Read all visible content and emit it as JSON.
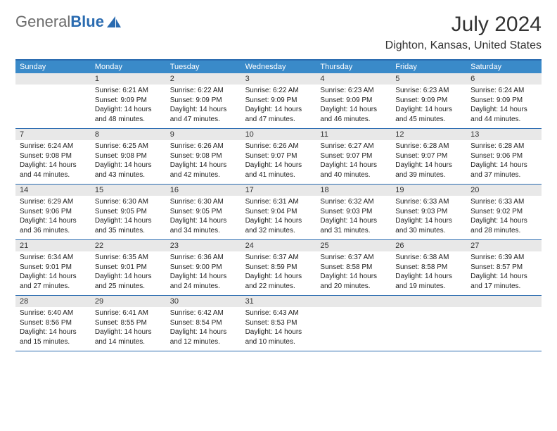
{
  "logo": {
    "text_general": "General",
    "text_blue": "Blue",
    "blue_color": "#2a6bb0",
    "gray_color": "#6b6b6b"
  },
  "title": "July 2024",
  "location": "Dighton, Kansas, United States",
  "header_bg": "#3a8ac9",
  "border_color": "#2a6bb0",
  "daynum_bg": "#e8e8e8",
  "dow": [
    "Sunday",
    "Monday",
    "Tuesday",
    "Wednesday",
    "Thursday",
    "Friday",
    "Saturday"
  ],
  "weeks": [
    [
      {
        "empty": true
      },
      {
        "day": "1",
        "sunrise": "Sunrise: 6:21 AM",
        "sunset": "Sunset: 9:09 PM",
        "daylight1": "Daylight: 14 hours",
        "daylight2": "and 48 minutes."
      },
      {
        "day": "2",
        "sunrise": "Sunrise: 6:22 AM",
        "sunset": "Sunset: 9:09 PM",
        "daylight1": "Daylight: 14 hours",
        "daylight2": "and 47 minutes."
      },
      {
        "day": "3",
        "sunrise": "Sunrise: 6:22 AM",
        "sunset": "Sunset: 9:09 PM",
        "daylight1": "Daylight: 14 hours",
        "daylight2": "and 47 minutes."
      },
      {
        "day": "4",
        "sunrise": "Sunrise: 6:23 AM",
        "sunset": "Sunset: 9:09 PM",
        "daylight1": "Daylight: 14 hours",
        "daylight2": "and 46 minutes."
      },
      {
        "day": "5",
        "sunrise": "Sunrise: 6:23 AM",
        "sunset": "Sunset: 9:09 PM",
        "daylight1": "Daylight: 14 hours",
        "daylight2": "and 45 minutes."
      },
      {
        "day": "6",
        "sunrise": "Sunrise: 6:24 AM",
        "sunset": "Sunset: 9:09 PM",
        "daylight1": "Daylight: 14 hours",
        "daylight2": "and 44 minutes."
      }
    ],
    [
      {
        "day": "7",
        "sunrise": "Sunrise: 6:24 AM",
        "sunset": "Sunset: 9:08 PM",
        "daylight1": "Daylight: 14 hours",
        "daylight2": "and 44 minutes."
      },
      {
        "day": "8",
        "sunrise": "Sunrise: 6:25 AM",
        "sunset": "Sunset: 9:08 PM",
        "daylight1": "Daylight: 14 hours",
        "daylight2": "and 43 minutes."
      },
      {
        "day": "9",
        "sunrise": "Sunrise: 6:26 AM",
        "sunset": "Sunset: 9:08 PM",
        "daylight1": "Daylight: 14 hours",
        "daylight2": "and 42 minutes."
      },
      {
        "day": "10",
        "sunrise": "Sunrise: 6:26 AM",
        "sunset": "Sunset: 9:07 PM",
        "daylight1": "Daylight: 14 hours",
        "daylight2": "and 41 minutes."
      },
      {
        "day": "11",
        "sunrise": "Sunrise: 6:27 AM",
        "sunset": "Sunset: 9:07 PM",
        "daylight1": "Daylight: 14 hours",
        "daylight2": "and 40 minutes."
      },
      {
        "day": "12",
        "sunrise": "Sunrise: 6:28 AM",
        "sunset": "Sunset: 9:07 PM",
        "daylight1": "Daylight: 14 hours",
        "daylight2": "and 39 minutes."
      },
      {
        "day": "13",
        "sunrise": "Sunrise: 6:28 AM",
        "sunset": "Sunset: 9:06 PM",
        "daylight1": "Daylight: 14 hours",
        "daylight2": "and 37 minutes."
      }
    ],
    [
      {
        "day": "14",
        "sunrise": "Sunrise: 6:29 AM",
        "sunset": "Sunset: 9:06 PM",
        "daylight1": "Daylight: 14 hours",
        "daylight2": "and 36 minutes."
      },
      {
        "day": "15",
        "sunrise": "Sunrise: 6:30 AM",
        "sunset": "Sunset: 9:05 PM",
        "daylight1": "Daylight: 14 hours",
        "daylight2": "and 35 minutes."
      },
      {
        "day": "16",
        "sunrise": "Sunrise: 6:30 AM",
        "sunset": "Sunset: 9:05 PM",
        "daylight1": "Daylight: 14 hours",
        "daylight2": "and 34 minutes."
      },
      {
        "day": "17",
        "sunrise": "Sunrise: 6:31 AM",
        "sunset": "Sunset: 9:04 PM",
        "daylight1": "Daylight: 14 hours",
        "daylight2": "and 32 minutes."
      },
      {
        "day": "18",
        "sunrise": "Sunrise: 6:32 AM",
        "sunset": "Sunset: 9:03 PM",
        "daylight1": "Daylight: 14 hours",
        "daylight2": "and 31 minutes."
      },
      {
        "day": "19",
        "sunrise": "Sunrise: 6:33 AM",
        "sunset": "Sunset: 9:03 PM",
        "daylight1": "Daylight: 14 hours",
        "daylight2": "and 30 minutes."
      },
      {
        "day": "20",
        "sunrise": "Sunrise: 6:33 AM",
        "sunset": "Sunset: 9:02 PM",
        "daylight1": "Daylight: 14 hours",
        "daylight2": "and 28 minutes."
      }
    ],
    [
      {
        "day": "21",
        "sunrise": "Sunrise: 6:34 AM",
        "sunset": "Sunset: 9:01 PM",
        "daylight1": "Daylight: 14 hours",
        "daylight2": "and 27 minutes."
      },
      {
        "day": "22",
        "sunrise": "Sunrise: 6:35 AM",
        "sunset": "Sunset: 9:01 PM",
        "daylight1": "Daylight: 14 hours",
        "daylight2": "and 25 minutes."
      },
      {
        "day": "23",
        "sunrise": "Sunrise: 6:36 AM",
        "sunset": "Sunset: 9:00 PM",
        "daylight1": "Daylight: 14 hours",
        "daylight2": "and 24 minutes."
      },
      {
        "day": "24",
        "sunrise": "Sunrise: 6:37 AM",
        "sunset": "Sunset: 8:59 PM",
        "daylight1": "Daylight: 14 hours",
        "daylight2": "and 22 minutes."
      },
      {
        "day": "25",
        "sunrise": "Sunrise: 6:37 AM",
        "sunset": "Sunset: 8:58 PM",
        "daylight1": "Daylight: 14 hours",
        "daylight2": "and 20 minutes."
      },
      {
        "day": "26",
        "sunrise": "Sunrise: 6:38 AM",
        "sunset": "Sunset: 8:58 PM",
        "daylight1": "Daylight: 14 hours",
        "daylight2": "and 19 minutes."
      },
      {
        "day": "27",
        "sunrise": "Sunrise: 6:39 AM",
        "sunset": "Sunset: 8:57 PM",
        "daylight1": "Daylight: 14 hours",
        "daylight2": "and 17 minutes."
      }
    ],
    [
      {
        "day": "28",
        "sunrise": "Sunrise: 6:40 AM",
        "sunset": "Sunset: 8:56 PM",
        "daylight1": "Daylight: 14 hours",
        "daylight2": "and 15 minutes."
      },
      {
        "day": "29",
        "sunrise": "Sunrise: 6:41 AM",
        "sunset": "Sunset: 8:55 PM",
        "daylight1": "Daylight: 14 hours",
        "daylight2": "and 14 minutes."
      },
      {
        "day": "30",
        "sunrise": "Sunrise: 6:42 AM",
        "sunset": "Sunset: 8:54 PM",
        "daylight1": "Daylight: 14 hours",
        "daylight2": "and 12 minutes."
      },
      {
        "day": "31",
        "sunrise": "Sunrise: 6:43 AM",
        "sunset": "Sunset: 8:53 PM",
        "daylight1": "Daylight: 14 hours",
        "daylight2": "and 10 minutes."
      },
      {
        "empty": true
      },
      {
        "empty": true
      },
      {
        "empty": true
      }
    ]
  ]
}
